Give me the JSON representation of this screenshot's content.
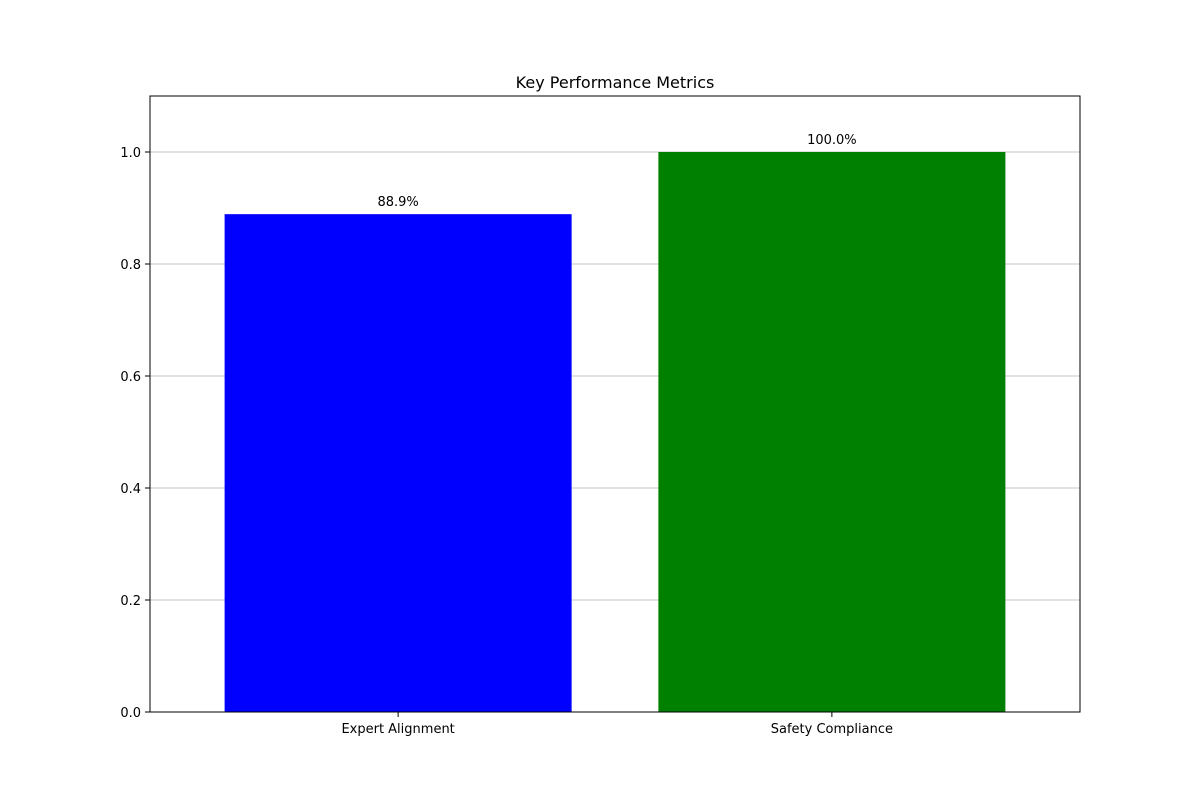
{
  "chart_data": {
    "type": "bar",
    "title": "Key Performance Metrics",
    "xlabel": "",
    "ylabel": "",
    "categories": [
      "Expert Alignment",
      "Safety Compliance"
    ],
    "values": [
      0.889,
      1.0
    ],
    "data_labels": [
      "88.9%",
      "100.0%"
    ],
    "colors": [
      "#0000ff",
      "#008000"
    ],
    "ylim": [
      0,
      1.1
    ],
    "yticks": [
      0.0,
      0.2,
      0.4,
      0.6,
      0.8,
      1.0
    ],
    "ytick_labels": [
      "0.0",
      "0.2",
      "0.4",
      "0.6",
      "0.8",
      "1.0"
    ],
    "grid": "y-axis horizontal lines",
    "legend": "none"
  }
}
